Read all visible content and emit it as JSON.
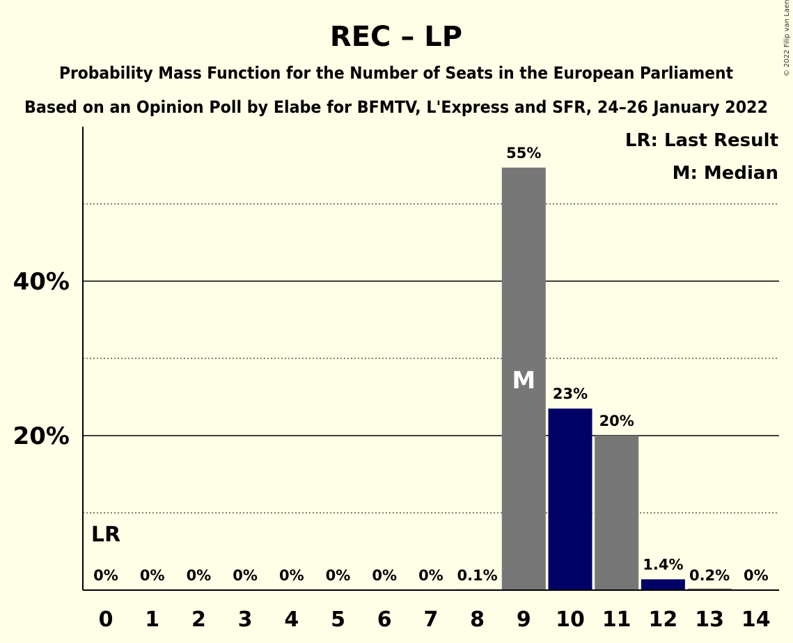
{
  "copyright": "© 2022 Filip van Laenen",
  "chart_data": {
    "type": "bar",
    "title": "REC – LP",
    "subtitle_1": "Probability Mass Function for the Number of Seats in the European Parliament",
    "subtitle_2": "Based on an Opinion Poll by Elabe for BFMTV, L'Express and SFR, 24–26 January 2022",
    "categories": [
      "0",
      "1",
      "2",
      "3",
      "4",
      "5",
      "6",
      "7",
      "8",
      "9",
      "10",
      "11",
      "12",
      "13",
      "14"
    ],
    "values": [
      0,
      0,
      0,
      0,
      0,
      0,
      0,
      0,
      0.1,
      54.7,
      23.5,
      20.0,
      1.4,
      0.2,
      0
    ],
    "value_labels": [
      "0%",
      "0%",
      "0%",
      "0%",
      "0%",
      "0%",
      "0%",
      "0%",
      "0.1%",
      "55%",
      "23%",
      "20%",
      "1.4%",
      "0.2%",
      "0%"
    ],
    "bar_colors": [
      "#777777",
      "#777777",
      "#777777",
      "#777777",
      "#777777",
      "#777777",
      "#777777",
      "#777777",
      "#777777",
      "#777777",
      "#000066",
      "#777777",
      "#000066",
      "#777777",
      "#777777"
    ],
    "ylim": [
      0,
      60
    ],
    "y_ticks": [
      20,
      40
    ],
    "y_tick_labels": [
      "20%",
      "40%"
    ],
    "y_dotted_lines": [
      10,
      30,
      50
    ],
    "last_result_category": "0",
    "last_result_marker": "LR",
    "median_category": "9",
    "median_marker": "M",
    "legend": [
      "LR: Last Result",
      "M: Median"
    ],
    "legend_position": "top-right",
    "colors": {
      "background": "#FFFEE6",
      "bar_default": "#777777",
      "bar_highlight": "#000066",
      "axis": "#000000"
    }
  }
}
